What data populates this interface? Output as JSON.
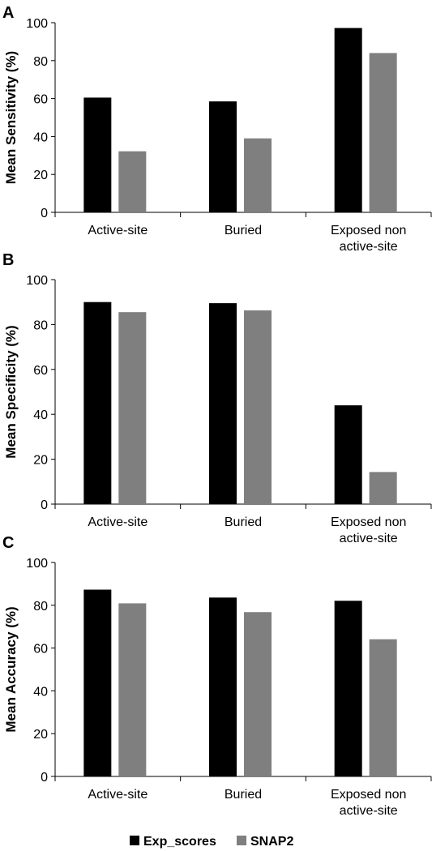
{
  "chart_data": [
    {
      "type": "bar",
      "panel": "A",
      "categories": [
        [
          "Active-site"
        ],
        [
          "Buried"
        ],
        [
          "Exposed non",
          "active-site"
        ]
      ],
      "series": [
        {
          "name": "Exp_scores",
          "values": [
            60.5,
            58.5,
            97.2
          ]
        },
        {
          "name": "SNAP2",
          "values": [
            32.2,
            39.0,
            84.0
          ]
        }
      ],
      "ylabel": "Mean Sensitivity (%)",
      "ylim": [
        0,
        100
      ],
      "yticks": [
        0,
        20,
        40,
        60,
        80,
        100
      ],
      "grid": false
    },
    {
      "type": "bar",
      "panel": "B",
      "categories": [
        [
          "Active-site"
        ],
        [
          "Buried"
        ],
        [
          "Exposed non",
          "active-site"
        ]
      ],
      "series": [
        {
          "name": "Exp_scores",
          "values": [
            90.0,
            89.5,
            44.0
          ]
        },
        {
          "name": "SNAP2",
          "values": [
            85.5,
            86.3,
            14.3
          ]
        }
      ],
      "ylabel": "Mean Specificity (%)",
      "ylim": [
        0,
        100
      ],
      "yticks": [
        0,
        20,
        40,
        60,
        80,
        100
      ],
      "grid": false
    },
    {
      "type": "bar",
      "panel": "C",
      "categories": [
        [
          "Active-site"
        ],
        [
          "Buried"
        ],
        [
          "Exposed non",
          "active-site"
        ]
      ],
      "series": [
        {
          "name": "Exp_scores",
          "values": [
            87.3,
            83.6,
            82.1
          ]
        },
        {
          "name": "SNAP2",
          "values": [
            80.9,
            76.8,
            64.1
          ]
        }
      ],
      "ylabel": "Mean Accuracy (%)",
      "ylim": [
        0,
        100
      ],
      "yticks": [
        0,
        20,
        40,
        60,
        80,
        100
      ],
      "grid": false
    }
  ],
  "legend": {
    "placement": "bottom-center",
    "items": [
      {
        "label": "Exp_scores",
        "color": "#000000"
      },
      {
        "label": "SNAP2",
        "color": "#7f7f7f"
      }
    ]
  }
}
